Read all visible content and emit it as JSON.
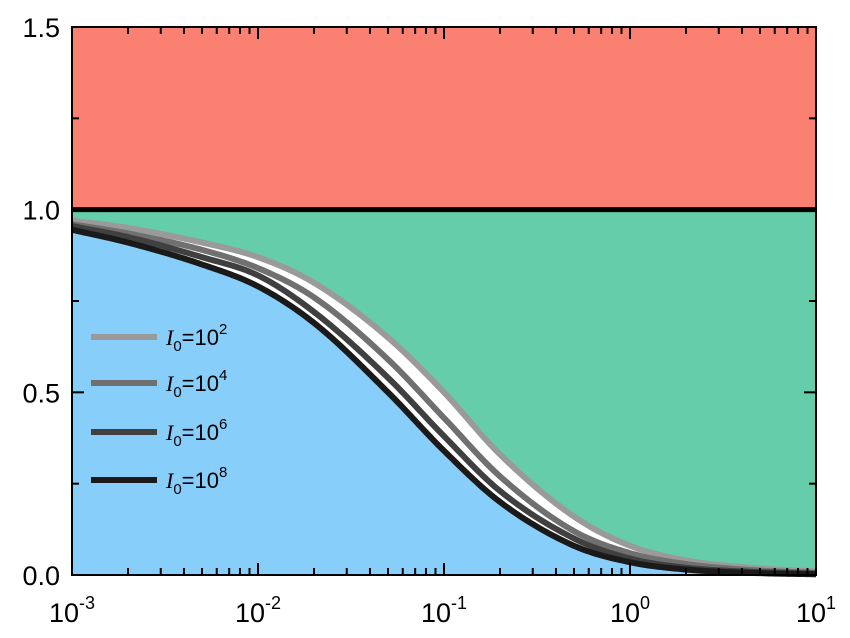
{
  "chart_data": {
    "type": "line",
    "title": "",
    "xlabel": "",
    "ylabel": "",
    "x_scale": "log",
    "xlim": [
      0.001,
      10
    ],
    "ylim": [
      0,
      1.5
    ],
    "x_ticks": [
      {
        "base": "10",
        "exp": "-3",
        "value": 0.001
      },
      {
        "base": "10",
        "exp": "-2",
        "value": 0.01
      },
      {
        "base": "10",
        "exp": "-1",
        "value": 0.1
      },
      {
        "base": "10",
        "exp": "0",
        "value": 1
      },
      {
        "base": "10",
        "exp": "1",
        "value": 10
      }
    ],
    "y_ticks": [
      {
        "label": "0.0",
        "value": 0
      },
      {
        "label": "0.5",
        "value": 0.5
      },
      {
        "label": "1.0",
        "value": 1.0
      },
      {
        "label": "1.5",
        "value": 1.5
      }
    ],
    "grid": false,
    "legend_position": "left",
    "reference_line": {
      "y": 1.0,
      "color": "#000000"
    },
    "regions": [
      {
        "name_key": "above-one",
        "y_from": 1.0,
        "y_to": 1.5,
        "color": "#FA8072"
      },
      {
        "name_key": "between",
        "color": "#66CDAA"
      },
      {
        "name_key": "under-lowest",
        "color": "#87CEFA"
      },
      {
        "name_key": "curve-band",
        "color": "#FFFFFF"
      }
    ],
    "x": [
      0.001,
      0.002,
      0.005,
      0.01,
      0.02,
      0.05,
      0.1,
      0.2,
      0.5,
      1,
      2,
      5,
      10
    ],
    "series": [
      {
        "base": "I",
        "sub": "0",
        "eq": "=10",
        "sup": "2",
        "color": "#9A9A9A",
        "values": [
          0.97,
          0.95,
          0.91,
          0.87,
          0.8,
          0.65,
          0.5,
          0.33,
          0.16,
          0.08,
          0.04,
          0.018,
          0.01
        ]
      },
      {
        "base": "I",
        "sub": "0",
        "eq": "=10",
        "sup": "4",
        "color": "#707070",
        "values": [
          0.96,
          0.935,
          0.89,
          0.84,
          0.76,
          0.59,
          0.43,
          0.27,
          0.12,
          0.06,
          0.03,
          0.012,
          0.006
        ]
      },
      {
        "base": "I",
        "sub": "0",
        "eq": "=10",
        "sup": "6",
        "color": "#404040",
        "values": [
          0.955,
          0.925,
          0.87,
          0.82,
          0.72,
          0.54,
          0.38,
          0.23,
          0.1,
          0.045,
          0.02,
          0.008,
          0.004
        ]
      },
      {
        "base": "I",
        "sub": "0",
        "eq": "=10",
        "sup": "8",
        "color": "#1A1A1A",
        "values": [
          0.945,
          0.91,
          0.85,
          0.79,
          0.69,
          0.5,
          0.34,
          0.2,
          0.08,
          0.035,
          0.015,
          0.005,
          0.002
        ]
      }
    ]
  }
}
